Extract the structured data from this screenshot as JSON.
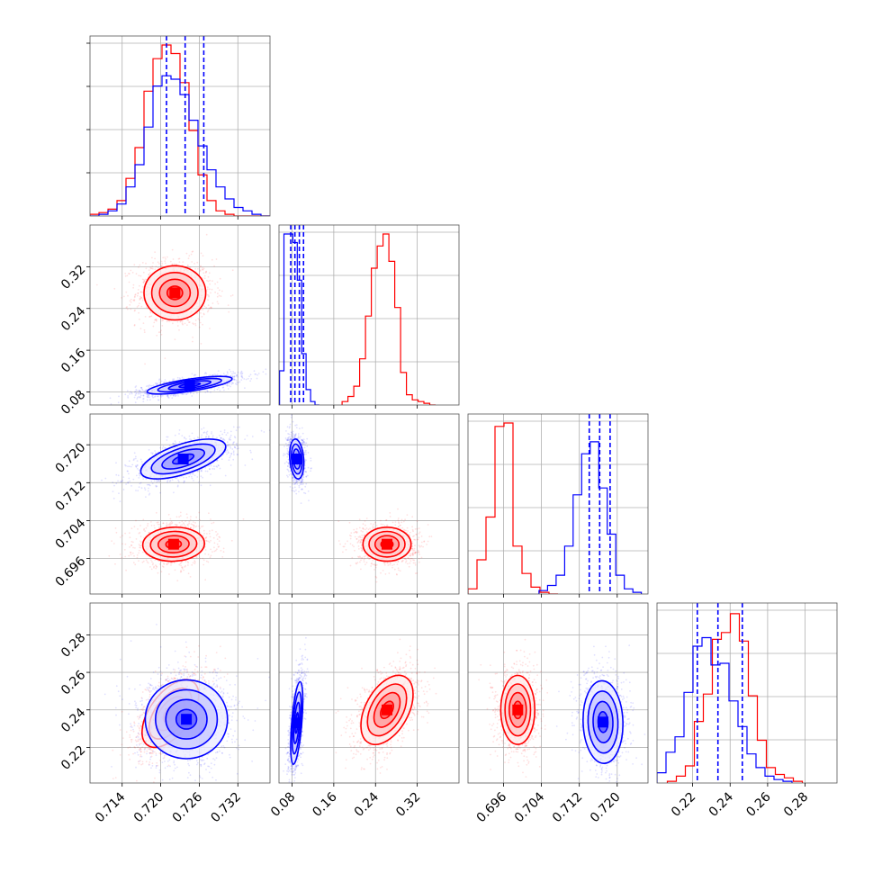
{
  "chart_data": {
    "type": "corner",
    "grid": true,
    "parameters": [
      {
        "range": [
          0.709,
          0.737
        ],
        "ticks": [
          0.714,
          0.72,
          0.726,
          0.732
        ],
        "tick_labels": [
          "0.714",
          "0.720",
          "0.726",
          "0.732"
        ]
      },
      {
        "range": [
          0.055,
          0.4
        ],
        "ticks": [
          0.08,
          0.16,
          0.24,
          0.32
        ],
        "tick_labels": [
          "0.08",
          "0.16",
          "0.24",
          "0.32"
        ]
      },
      {
        "range": [
          0.6885,
          0.7265
        ],
        "ticks": [
          0.696,
          0.704,
          0.712,
          0.72
        ],
        "tick_labels": [
          "0.696",
          "0.704",
          "0.712",
          "0.720"
        ]
      },
      {
        "range": [
          0.201,
          0.297
        ],
        "ticks": [
          0.22,
          0.24,
          0.26,
          0.28
        ],
        "tick_labels": [
          "0.22",
          "0.24",
          "0.26",
          "0.28"
        ]
      }
    ],
    "series": [
      {
        "color": "#ff0000",
        "histograms": [
          {
            "edges_start": 0.709,
            "bin_width": 0.0014,
            "counts": [
              0.01,
              0.02,
              0.04,
              0.09,
              0.22,
              0.4,
              0.73,
              0.92,
              1.0,
              0.95,
              0.78,
              0.5,
              0.24,
              0.09,
              0.03,
              0.01,
              0.0,
              0.0,
              0.0,
              0.0
            ]
          },
          {
            "edges_start": 0.176,
            "bin_width": 0.0112,
            "counts": [
              0.02,
              0.05,
              0.11,
              0.27,
              0.52,
              0.8,
              0.93,
              1.0,
              0.84,
              0.57,
              0.19,
              0.06,
              0.03,
              0.02,
              0.01,
              0.0
            ]
          },
          {
            "edges_start": 0.6885,
            "bin_width": 0.0019,
            "counts": [
              0.03,
              0.2,
              0.45,
              0.98,
              1.0,
              0.28,
              0.12,
              0.04,
              0.01,
              0.0
            ]
          },
          {
            "edges_start": 0.2065,
            "bin_width": 0.0048,
            "counts": [
              0.01,
              0.04,
              0.1,
              0.36,
              0.52,
              0.84,
              0.88,
              0.99,
              0.83,
              0.51,
              0.25,
              0.09,
              0.05,
              0.03,
              0.01
            ]
          }
        ],
        "blobs": [
          {
            "x": 0,
            "y": 1,
            "mean": [
              0.7222,
              0.27
            ],
            "sd": [
              0.0024,
              0.026
            ],
            "rho": 0.0
          },
          {
            "x": 0,
            "y": 2,
            "mean": [
              0.722,
              0.699
            ],
            "sd": [
              0.0024,
              0.0018
            ],
            "rho": 0.05
          },
          {
            "x": 0,
            "y": 3,
            "mean": [
              0.7215,
              0.238
            ],
            "sd": [
              0.0022,
              0.009
            ],
            "rho": 0.55
          },
          {
            "x": 1,
            "y": 2,
            "mean": [
              0.262,
              0.699
            ],
            "sd": [
              0.023,
              0.0018
            ],
            "rho": 0.0
          },
          {
            "x": 1,
            "y": 3,
            "mean": [
              0.262,
              0.24
            ],
            "sd": [
              0.025,
              0.0092
            ],
            "rho": 0.45
          },
          {
            "x": 2,
            "y": 3,
            "mean": [
              0.699,
              0.24
            ],
            "sd": [
              0.0018,
              0.0092
            ],
            "rho": 0.0
          }
        ]
      },
      {
        "color": "#0000ff",
        "histograms": [
          {
            "edges_start": 0.709,
            "bin_width": 0.0014,
            "counts": [
              0.0,
              0.01,
              0.03,
              0.07,
              0.17,
              0.3,
              0.52,
              0.76,
              0.82,
              0.8,
              0.71,
              0.56,
              0.41,
              0.27,
              0.17,
              0.1,
              0.05,
              0.03,
              0.01,
              0.0
            ]
          },
          {
            "edges_start": 0.056,
            "bin_width": 0.0085,
            "counts": [
              0.2,
              1.0,
              1.0,
              0.95,
              0.73,
              0.3,
              0.09,
              0.02,
              0.0
            ]
          },
          {
            "edges_start": 0.7035,
            "bin_width": 0.0018,
            "counts": [
              0.02,
              0.05,
              0.11,
              0.28,
              0.58,
              0.82,
              0.89,
              0.62,
              0.35,
              0.11,
              0.03,
              0.01
            ]
          },
          {
            "edges_start": 0.201,
            "bin_width": 0.0048,
            "counts": [
              0.06,
              0.18,
              0.27,
              0.53,
              0.8,
              0.85,
              0.69,
              0.7,
              0.48,
              0.33,
              0.17,
              0.09,
              0.04,
              0.02,
              0.01
            ]
          }
        ],
        "quantiles": [
          [
            0.7209,
            0.7238,
            0.7267
          ],
          [
            0.0775,
            0.0855,
            0.094,
            0.102
          ],
          [
            0.7141,
            0.7163,
            0.7185
          ],
          [
            0.2225,
            0.2335,
            0.2465
          ]
        ],
        "blobs": [
          {
            "x": 0,
            "y": 1,
            "mean": [
              0.7245,
              0.093
            ],
            "sd": [
              0.0033,
              0.0085
            ],
            "rho": 0.72
          },
          {
            "x": 0,
            "y": 2,
            "mean": [
              0.7235,
              0.717
            ],
            "sd": [
              0.0033,
              0.0021
            ],
            "rho": 0.62
          },
          {
            "x": 0,
            "y": 3,
            "mean": [
              0.724,
              0.235
            ],
            "sd": [
              0.0032,
              0.0105
            ],
            "rho": 0.0
          },
          {
            "x": 1,
            "y": 2,
            "mean": [
              0.089,
              0.717
            ],
            "sd": [
              0.0068,
              0.0021
            ],
            "rho": -0.2
          },
          {
            "x": 1,
            "y": 3,
            "mean": [
              0.089,
              0.233
            ],
            "sd": [
              0.0058,
              0.011
            ],
            "rho": 0.55
          },
          {
            "x": 2,
            "y": 3,
            "mean": [
              0.717,
              0.2335
            ],
            "sd": [
              0.0021,
              0.011
            ],
            "rho": -0.05
          }
        ]
      }
    ]
  }
}
